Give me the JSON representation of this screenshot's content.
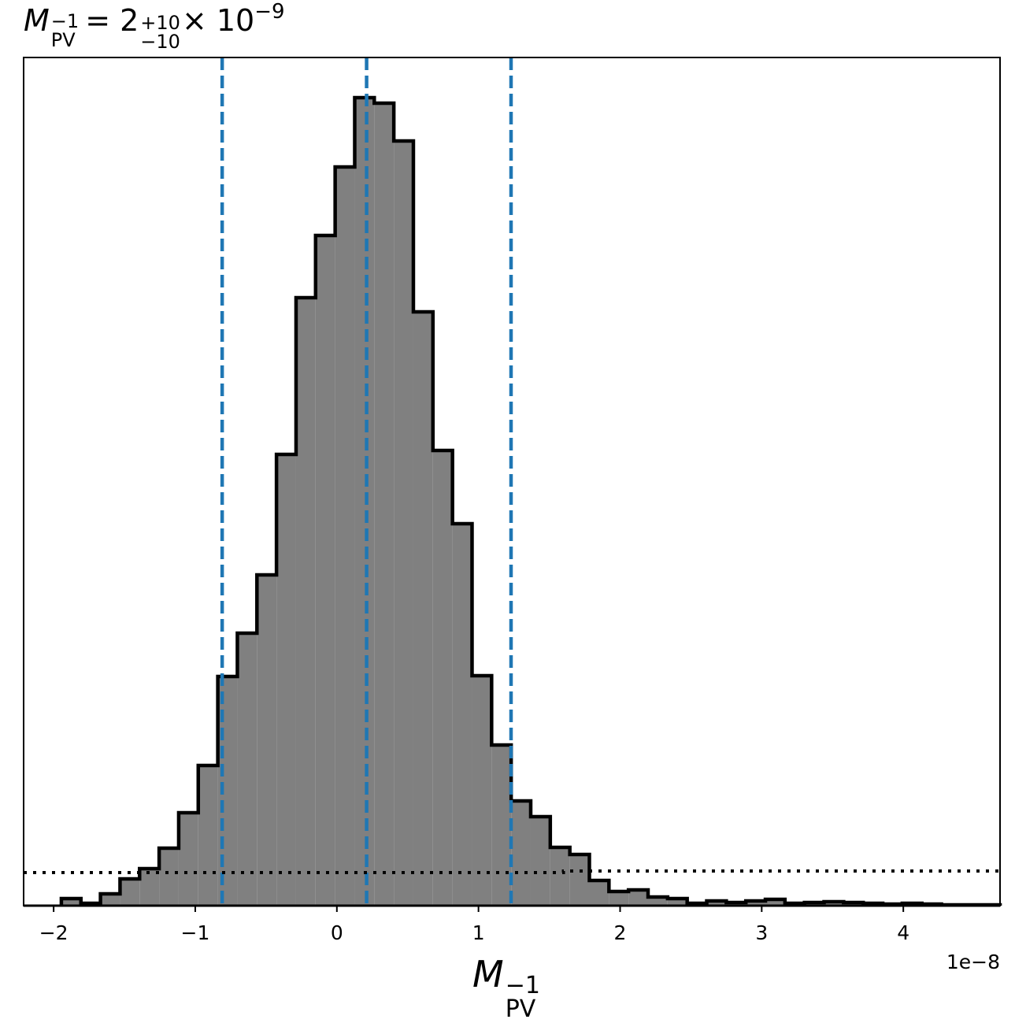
{
  "chart_data": {
    "type": "histogram",
    "title": {
      "symbol": "M",
      "subscript": "PV",
      "superscript": "−1",
      "middle": "= 2",
      "upper": "+10",
      "lower": "−10",
      "tail": "× 10",
      "exponent": "−9"
    },
    "x_label": {
      "symbol": "M",
      "subscript": "PV",
      "superscript": "−1"
    },
    "offset_text": "1e−8",
    "bins": [
      -1.9455,
      -1.8074,
      -1.6693,
      -1.5312,
      -1.3931,
      -1.255,
      -1.1169,
      -0.9788,
      -0.8407,
      -0.7026,
      -0.5645,
      -0.4264,
      -0.2883,
      -0.1502,
      -0.0121,
      0.126,
      0.2641,
      0.4022,
      0.5403,
      0.6784,
      0.8165,
      0.9546,
      1.0927,
      1.2308,
      1.3689,
      1.507,
      1.6451,
      1.7832,
      1.9213,
      2.0594,
      2.1975,
      2.3356,
      2.4737,
      2.6118,
      2.7499,
      2.888,
      3.0261,
      3.1642,
      3.3023,
      3.4404,
      3.5785,
      3.7166,
      3.8547,
      3.9928,
      4.1309,
      4.269,
      4.4071,
      4.5452,
      4.6833
    ],
    "values": [
      9,
      3,
      15,
      34,
      47,
      73,
      118,
      178,
      291,
      346,
      420,
      573,
      772,
      851,
      938,
      1026,
      1019,
      971,
      754,
      578,
      485,
      292,
      204,
      133,
      113,
      74,
      65,
      32,
      18,
      20,
      11,
      9,
      3,
      6,
      4,
      6,
      8,
      3,
      4,
      5,
      4,
      3,
      2,
      3,
      2,
      1,
      1,
      1
    ],
    "color": "#808080",
    "edge_color": "#000000",
    "vlines": [
      -0.81,
      0.21,
      1.23
    ],
    "vline_color": "#1f77b4",
    "reference_line": {
      "x": [
        -2.212,
        1.6,
        1.6,
        4.683
      ],
      "values": [
        42,
        42,
        44,
        44
      ]
    },
    "xlim": [
      -2.212,
      4.683
    ],
    "ylim": [
      0,
      1077
    ],
    "xticks": [
      {
        "value": -2,
        "label": "−2"
      },
      {
        "value": -1,
        "label": "−1"
      },
      0,
      1,
      2,
      3,
      4
    ]
  }
}
